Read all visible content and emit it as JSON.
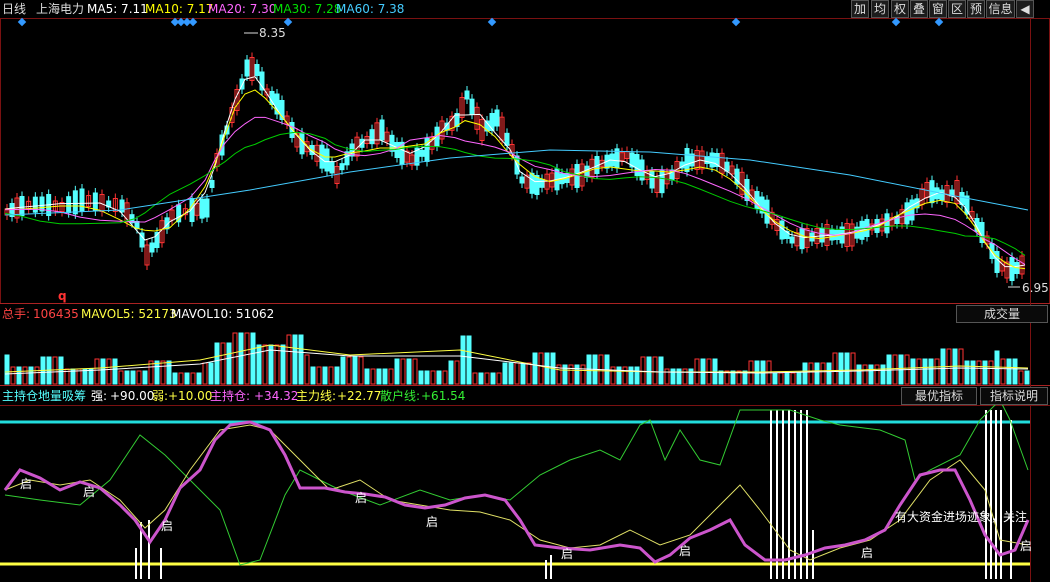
{
  "header": {
    "period": "日线",
    "stock": "上海电力",
    "ma": [
      {
        "label": "MA5: 7.11",
        "color": "#ffffff"
      },
      {
        "label": "MA10: 7.17",
        "color": "#ffff00"
      },
      {
        "label": "MA20: 7.30",
        "color": "#ff66ff"
      },
      {
        "label": "MA30: 7.28",
        "color": "#00e000"
      },
      {
        "label": "MA60: 7.38",
        "color": "#44ccff"
      }
    ],
    "toolbar": [
      "加",
      "均",
      "权",
      "叠",
      "窗",
      "区",
      "预",
      "信息"
    ],
    "arrow_icon": "◀"
  },
  "price": {
    "high_label": "8.35",
    "low_label": "6.95",
    "marker": "q"
  },
  "volume": {
    "total_label": "总手:",
    "total_value": "106435",
    "mavol5": "MAVOL5: 52173",
    "mavol10": "MAVOL10: 51062",
    "dropdown": "成交量"
  },
  "indicator": {
    "name": "主持仓地量吸筹",
    "strong_label": "强:",
    "strong_value": "+90.00",
    "weak_label": "弱:",
    "weak_value": "+10.00",
    "main_label": "主持仓:",
    "main_value": "+34.32",
    "force_label": "主力线:",
    "force_value": "+22.77",
    "retail_label": "散户线:",
    "retail_value": "+61.54",
    "btn_best": "最优指标",
    "btn_help": "指标说明",
    "signal": "启",
    "note": "有大资金进场迹象，关注"
  },
  "colors": {
    "up": "#ff3333",
    "down": "#55ffff",
    "purple": "#cc55cc",
    "cyan_line": "#22dddd",
    "yellow_line": "#ffff44",
    "green": "#33cc33",
    "diamond": "#3399ff"
  }
}
